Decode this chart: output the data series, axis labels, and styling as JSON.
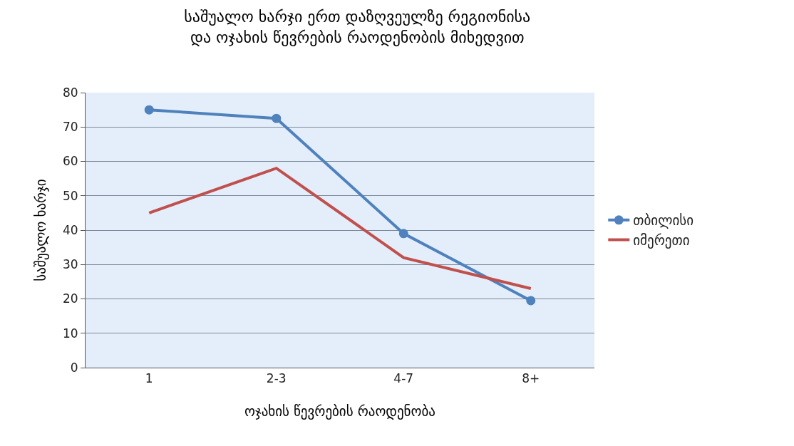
{
  "chart_data": {
    "type": "line",
    "title": "საშუალო ხარჯი ერთ დაზღვეულზე რეგიონისა და ოჯახის წევრების რაოდენობის მიხედვით",
    "xlabel": "ოჯახის წევრების რაოდენობა",
    "ylabel": "საშუალო ხარჯი",
    "categories": [
      "1",
      "2-3",
      "4-7",
      "8+"
    ],
    "series": [
      {
        "name": "თბილისი",
        "color": "#4f81bd",
        "marker": "circle",
        "values": [
          75,
          72.5,
          39,
          19.5
        ]
      },
      {
        "name": "იმერეთი",
        "color": "#c0504d",
        "marker": "none",
        "values": [
          45,
          58,
          32,
          23
        ]
      }
    ],
    "ylim": [
      0,
      80
    ],
    "yticks": [
      0,
      10,
      20,
      30,
      40,
      50,
      60,
      70,
      80
    ],
    "grid": "y",
    "legend": "right"
  }
}
